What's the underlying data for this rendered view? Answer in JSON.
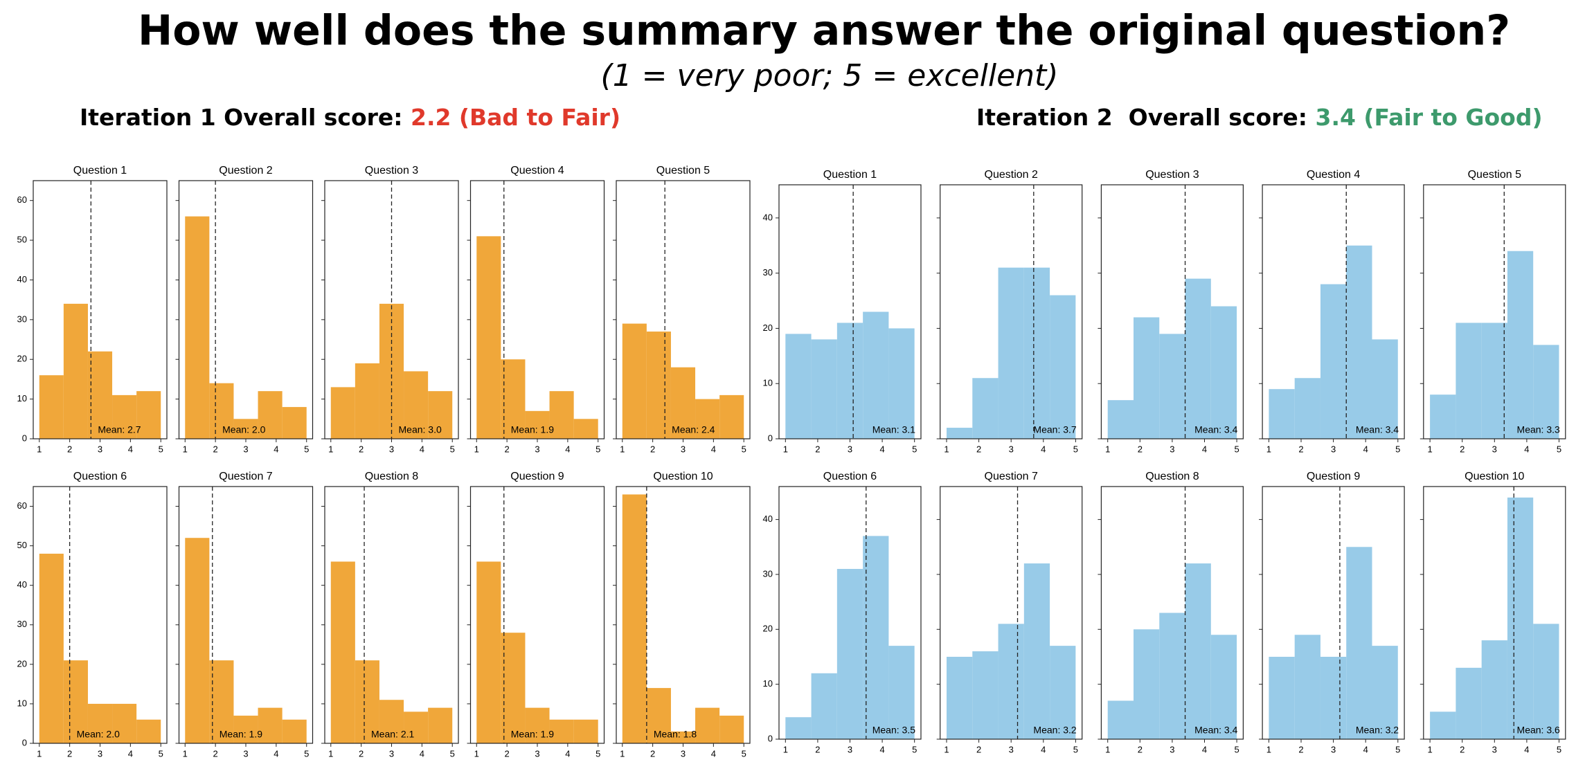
{
  "header": {
    "title": "How well does the summary answer the original question?",
    "subtitle": "(1 = very poor; 5 = excellent)"
  },
  "panels": [
    {
      "label": "Iteration 1 Overall score: ",
      "score": "2.2 (Bad to Fair)",
      "color": "#e0392b"
    },
    {
      "label": "Iteration 2  Overall score: ",
      "score": "3.4 (Fair to Good)",
      "color": "#3d9a6c"
    }
  ],
  "chart_data": [
    {
      "type": "histogram",
      "title": "Question 1",
      "bins": [
        1,
        1.8,
        2.6,
        3.4,
        4.2,
        5
      ],
      "values": [
        16,
        34,
        22,
        11,
        12
      ],
      "color": "#f0a73a",
      "mean": 2.7,
      "mean_label": "Mean: 2.7",
      "xlim": [
        0.8,
        5.2
      ],
      "xticks": [
        1,
        2,
        3,
        4,
        5
      ],
      "ylim": [
        0,
        65
      ],
      "yticks": [
        0,
        10,
        20,
        30,
        40,
        50,
        60
      ],
      "ytick_labels": true
    },
    {
      "type": "histogram",
      "title": "Question 2",
      "bins": [
        1,
        1.8,
        2.6,
        3.4,
        4.2,
        5
      ],
      "values": [
        56,
        14,
        5,
        12,
        8
      ],
      "color": "#f0a73a",
      "mean": 2.0,
      "mean_label": "Mean: 2.0",
      "xlim": [
        0.8,
        5.2
      ],
      "xticks": [
        1,
        2,
        3,
        4,
        5
      ],
      "ylim": [
        0,
        65
      ],
      "yticks": [
        0,
        10,
        20,
        30,
        40,
        50,
        60
      ],
      "ytick_labels": false
    },
    {
      "type": "histogram",
      "title": "Question 3",
      "bins": [
        1,
        1.8,
        2.6,
        3.4,
        4.2,
        5
      ],
      "values": [
        13,
        19,
        34,
        17,
        12
      ],
      "color": "#f0a73a",
      "mean": 3.0,
      "mean_label": "Mean: 3.0",
      "xlim": [
        0.8,
        5.2
      ],
      "xticks": [
        1,
        2,
        3,
        4,
        5
      ],
      "ylim": [
        0,
        65
      ],
      "yticks": [
        0,
        10,
        20,
        30,
        40,
        50,
        60
      ],
      "ytick_labels": false
    },
    {
      "type": "histogram",
      "title": "Question 4",
      "bins": [
        1,
        1.8,
        2.6,
        3.4,
        4.2,
        5
      ],
      "values": [
        51,
        20,
        7,
        12,
        5
      ],
      "color": "#f0a73a",
      "mean": 1.9,
      "mean_label": "Mean: 1.9",
      "xlim": [
        0.8,
        5.2
      ],
      "xticks": [
        1,
        2,
        3,
        4,
        5
      ],
      "ylim": [
        0,
        65
      ],
      "yticks": [
        0,
        10,
        20,
        30,
        40,
        50,
        60
      ],
      "ytick_labels": false
    },
    {
      "type": "histogram",
      "title": "Question 5",
      "bins": [
        1,
        1.8,
        2.6,
        3.4,
        4.2,
        5
      ],
      "values": [
        29,
        27,
        18,
        10,
        11
      ],
      "color": "#f0a73a",
      "mean": 2.4,
      "mean_label": "Mean: 2.4",
      "xlim": [
        0.8,
        5.2
      ],
      "xticks": [
        1,
        2,
        3,
        4,
        5
      ],
      "ylim": [
        0,
        65
      ],
      "yticks": [
        0,
        10,
        20,
        30,
        40,
        50,
        60
      ],
      "ytick_labels": false
    },
    {
      "type": "histogram",
      "title": "Question 6",
      "bins": [
        1,
        1.8,
        2.6,
        3.4,
        4.2,
        5
      ],
      "values": [
        48,
        21,
        10,
        10,
        6
      ],
      "color": "#f0a73a",
      "mean": 2.0,
      "mean_label": "Mean: 2.0",
      "xlim": [
        0.8,
        5.2
      ],
      "xticks": [
        1,
        2,
        3,
        4,
        5
      ],
      "ylim": [
        0,
        65
      ],
      "yticks": [
        0,
        10,
        20,
        30,
        40,
        50,
        60
      ],
      "ytick_labels": true
    },
    {
      "type": "histogram",
      "title": "Question 7",
      "bins": [
        1,
        1.8,
        2.6,
        3.4,
        4.2,
        5
      ],
      "values": [
        52,
        21,
        7,
        9,
        6
      ],
      "color": "#f0a73a",
      "mean": 1.9,
      "mean_label": "Mean: 1.9",
      "xlim": [
        0.8,
        5.2
      ],
      "xticks": [
        1,
        2,
        3,
        4,
        5
      ],
      "ylim": [
        0,
        65
      ],
      "yticks": [
        0,
        10,
        20,
        30,
        40,
        50,
        60
      ],
      "ytick_labels": false
    },
    {
      "type": "histogram",
      "title": "Question 8",
      "bins": [
        1,
        1.8,
        2.6,
        3.4,
        4.2,
        5
      ],
      "values": [
        46,
        21,
        11,
        8,
        9
      ],
      "color": "#f0a73a",
      "mean": 2.1,
      "mean_label": "Mean: 2.1",
      "xlim": [
        0.8,
        5.2
      ],
      "xticks": [
        1,
        2,
        3,
        4,
        5
      ],
      "ylim": [
        0,
        65
      ],
      "yticks": [
        0,
        10,
        20,
        30,
        40,
        50,
        60
      ],
      "ytick_labels": false
    },
    {
      "type": "histogram",
      "title": "Question 9",
      "bins": [
        1,
        1.8,
        2.6,
        3.4,
        4.2,
        5
      ],
      "values": [
        46,
        28,
        9,
        6,
        6
      ],
      "color": "#f0a73a",
      "mean": 1.9,
      "mean_label": "Mean: 1.9",
      "xlim": [
        0.8,
        5.2
      ],
      "xticks": [
        1,
        2,
        3,
        4,
        5
      ],
      "ylim": [
        0,
        65
      ],
      "yticks": [
        0,
        10,
        20,
        30,
        40,
        50,
        60
      ],
      "ytick_labels": false
    },
    {
      "type": "histogram",
      "title": "Question 10",
      "bins": [
        1,
        1.8,
        2.6,
        3.4,
        4.2,
        5
      ],
      "values": [
        63,
        14,
        3,
        9,
        7
      ],
      "color": "#f0a73a",
      "mean": 1.8,
      "mean_label": "Mean: 1.8",
      "xlim": [
        0.8,
        5.2
      ],
      "xticks": [
        1,
        2,
        3,
        4,
        5
      ],
      "ylim": [
        0,
        65
      ],
      "yticks": [
        0,
        10,
        20,
        30,
        40,
        50,
        60
      ],
      "ytick_labels": false
    },
    {
      "type": "histogram",
      "title": "Question 1",
      "bins": [
        1,
        1.8,
        2.6,
        3.4,
        4.2,
        5
      ],
      "values": [
        19,
        18,
        21,
        23,
        20
      ],
      "color": "#98cbe8",
      "mean": 3.1,
      "mean_label": "Mean: 3.1",
      "xlim": [
        0.8,
        5.2
      ],
      "xticks": [
        1,
        2,
        3,
        4,
        5
      ],
      "ylim": [
        0,
        46
      ],
      "yticks": [
        0,
        10,
        20,
        30,
        40
      ],
      "ytick_labels": true
    },
    {
      "type": "histogram",
      "title": "Question 2",
      "bins": [
        1,
        1.8,
        2.6,
        3.4,
        4.2,
        5
      ],
      "values": [
        2,
        11,
        31,
        31,
        26
      ],
      "color": "#98cbe8",
      "mean": 3.7,
      "mean_label": "Mean: 3.7",
      "xlim": [
        0.8,
        5.2
      ],
      "xticks": [
        1,
        2,
        3,
        4,
        5
      ],
      "ylim": [
        0,
        46
      ],
      "yticks": [
        0,
        10,
        20,
        30,
        40
      ],
      "ytick_labels": false
    },
    {
      "type": "histogram",
      "title": "Question 3",
      "bins": [
        1,
        1.8,
        2.6,
        3.4,
        4.2,
        5
      ],
      "values": [
        7,
        22,
        19,
        29,
        24
      ],
      "color": "#98cbe8",
      "mean": 3.4,
      "mean_label": "Mean: 3.4",
      "xlim": [
        0.8,
        5.2
      ],
      "xticks": [
        1,
        2,
        3,
        4,
        5
      ],
      "ylim": [
        0,
        46
      ],
      "yticks": [
        0,
        10,
        20,
        30,
        40
      ],
      "ytick_labels": false
    },
    {
      "type": "histogram",
      "title": "Question 4",
      "bins": [
        1,
        1.8,
        2.6,
        3.4,
        4.2,
        5
      ],
      "values": [
        9,
        11,
        28,
        35,
        18
      ],
      "color": "#98cbe8",
      "mean": 3.4,
      "mean_label": "Mean: 3.4",
      "xlim": [
        0.8,
        5.2
      ],
      "xticks": [
        1,
        2,
        3,
        4,
        5
      ],
      "ylim": [
        0,
        46
      ],
      "yticks": [
        0,
        10,
        20,
        30,
        40
      ],
      "ytick_labels": false
    },
    {
      "type": "histogram",
      "title": "Question 5",
      "bins": [
        1,
        1.8,
        2.6,
        3.4,
        4.2,
        5
      ],
      "values": [
        8,
        21,
        21,
        34,
        17
      ],
      "color": "#98cbe8",
      "mean": 3.3,
      "mean_label": "Mean: 3.3",
      "xlim": [
        0.8,
        5.2
      ],
      "xticks": [
        1,
        2,
        3,
        4,
        5
      ],
      "ylim": [
        0,
        46
      ],
      "yticks": [
        0,
        10,
        20,
        30,
        40
      ],
      "ytick_labels": false
    },
    {
      "type": "histogram",
      "title": "Question 6",
      "bins": [
        1,
        1.8,
        2.6,
        3.4,
        4.2,
        5
      ],
      "values": [
        4,
        12,
        31,
        37,
        17
      ],
      "color": "#98cbe8",
      "mean": 3.5,
      "mean_label": "Mean: 3.5",
      "xlim": [
        0.8,
        5.2
      ],
      "xticks": [
        1,
        2,
        3,
        4,
        5
      ],
      "ylim": [
        0,
        46
      ],
      "yticks": [
        0,
        10,
        20,
        30,
        40
      ],
      "ytick_labels": true
    },
    {
      "type": "histogram",
      "title": "Question 7",
      "bins": [
        1,
        1.8,
        2.6,
        3.4,
        4.2,
        5
      ],
      "values": [
        15,
        16,
        21,
        32,
        17
      ],
      "color": "#98cbe8",
      "mean": 3.2,
      "mean_label": "Mean: 3.2",
      "xlim": [
        0.8,
        5.2
      ],
      "xticks": [
        1,
        2,
        3,
        4,
        5
      ],
      "ylim": [
        0,
        46
      ],
      "yticks": [
        0,
        10,
        20,
        30,
        40
      ],
      "ytick_labels": false
    },
    {
      "type": "histogram",
      "title": "Question 8",
      "bins": [
        1,
        1.8,
        2.6,
        3.4,
        4.2,
        5
      ],
      "values": [
        7,
        20,
        23,
        32,
        19
      ],
      "color": "#98cbe8",
      "mean": 3.4,
      "mean_label": "Mean: 3.4",
      "xlim": [
        0.8,
        5.2
      ],
      "xticks": [
        1,
        2,
        3,
        4,
        5
      ],
      "ylim": [
        0,
        46
      ],
      "yticks": [
        0,
        10,
        20,
        30,
        40
      ],
      "ytick_labels": false
    },
    {
      "type": "histogram",
      "title": "Question 9",
      "bins": [
        1,
        1.8,
        2.6,
        3.4,
        4.2,
        5
      ],
      "values": [
        15,
        19,
        15,
        35,
        17
      ],
      "color": "#98cbe8",
      "mean": 3.2,
      "mean_label": "Mean: 3.2",
      "xlim": [
        0.8,
        5.2
      ],
      "xticks": [
        1,
        2,
        3,
        4,
        5
      ],
      "ylim": [
        0,
        46
      ],
      "yticks": [
        0,
        10,
        20,
        30,
        40
      ],
      "ytick_labels": false
    },
    {
      "type": "histogram",
      "title": "Question 10",
      "bins": [
        1,
        1.8,
        2.6,
        3.4,
        4.2,
        5
      ],
      "values": [
        5,
        13,
        18,
        44,
        21
      ],
      "color": "#98cbe8",
      "mean": 3.6,
      "mean_label": "Mean: 3.6",
      "xlim": [
        0.8,
        5.2
      ],
      "xticks": [
        1,
        2,
        3,
        4,
        5
      ],
      "ylim": [
        0,
        46
      ],
      "yticks": [
        0,
        10,
        20,
        30,
        40
      ],
      "ytick_labels": false
    }
  ]
}
